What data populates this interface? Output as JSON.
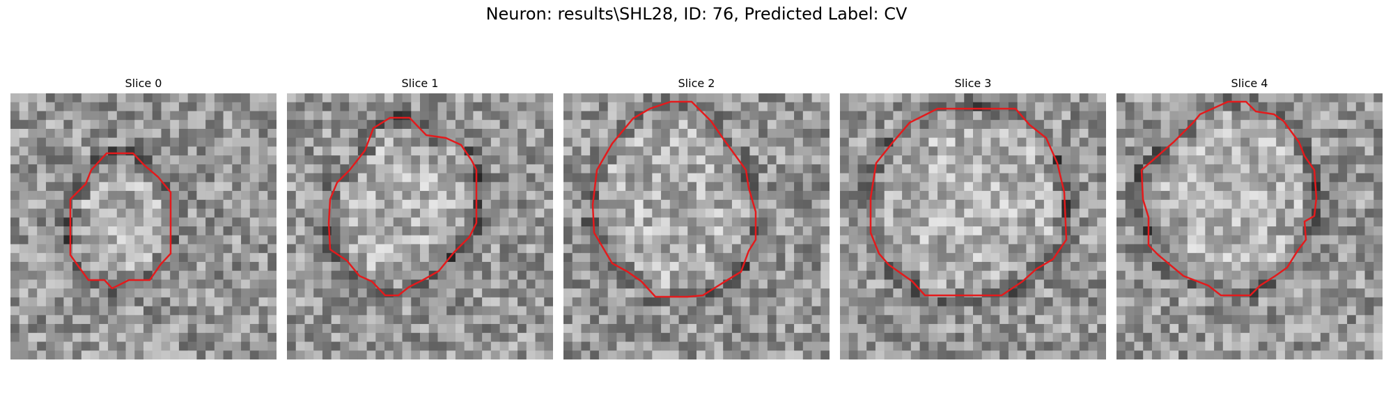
{
  "figure": {
    "title": "Neuron: results\\SHL28, ID: 76, Predicted Label: CV",
    "contour_color": "#e41a1c",
    "panels": [
      {
        "title": "Slice 0"
      },
      {
        "title": "Slice 1"
      },
      {
        "title": "Slice 2"
      },
      {
        "title": "Slice 3"
      },
      {
        "title": "Slice 4"
      }
    ]
  }
}
